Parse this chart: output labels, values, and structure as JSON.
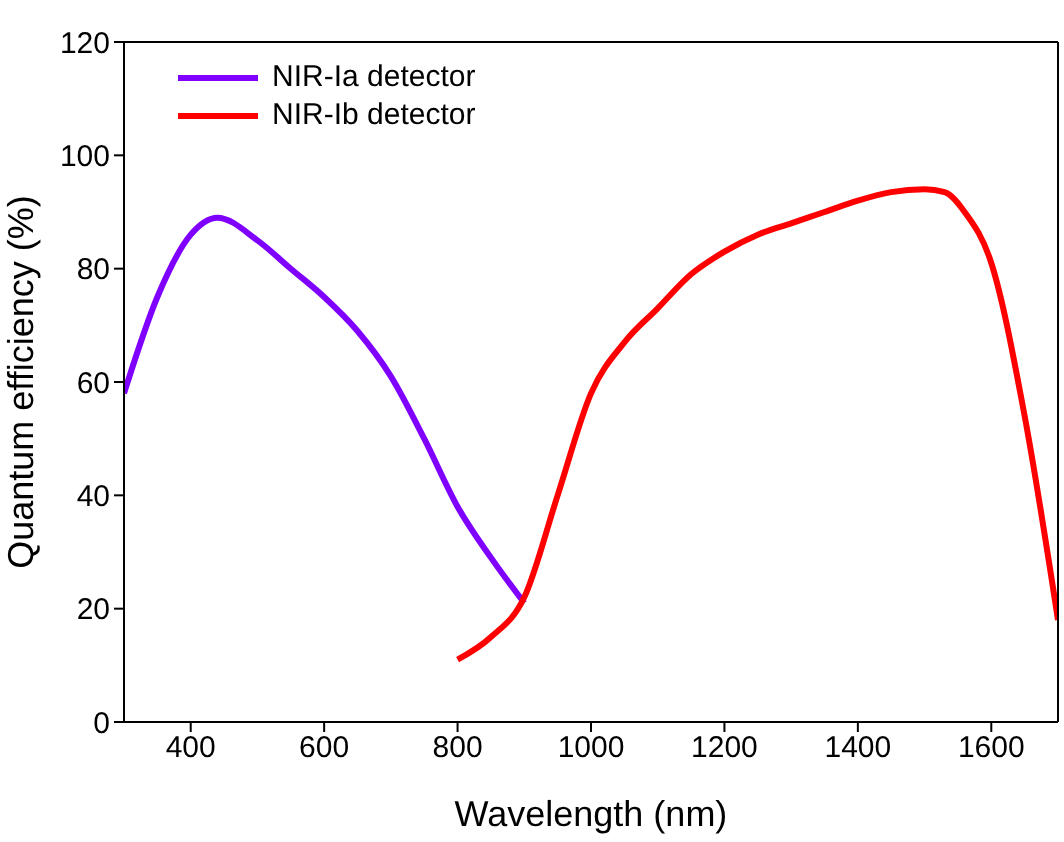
{
  "chart_data": {
    "type": "line",
    "xlabel": "Wavelength (nm)",
    "ylabel": "Quantum efficiency (%)",
    "xlim": [
      300,
      1700
    ],
    "xticks": [
      400,
      600,
      800,
      1000,
      1200,
      1400,
      1600
    ],
    "ylim": [
      0,
      120
    ],
    "yticks": [
      0,
      20,
      40,
      60,
      80,
      100,
      120
    ],
    "grid": false,
    "legend": "top left",
    "marker": "none",
    "line_style": "solid",
    "series": [
      {
        "name": "NIR-Ia detector",
        "color": "#7f00ff",
        "x": [
          300,
          350,
          400,
          440,
          500,
          550,
          600,
          650,
          700,
          750,
          800,
          850,
          900
        ],
        "values": [
          58,
          75,
          86,
          89,
          85,
          80,
          75,
          69,
          61,
          50,
          38,
          29,
          21
        ]
      },
      {
        "name": "NIR-Ib detector",
        "color": "#ff0000",
        "x": [
          800,
          850,
          900,
          950,
          1000,
          1050,
          1100,
          1150,
          1200,
          1250,
          1300,
          1350,
          1400,
          1450,
          1500,
          1530,
          1560,
          1600,
          1650,
          1700
        ],
        "values": [
          11,
          15,
          22,
          40,
          58,
          67,
          73,
          79,
          83,
          86,
          88,
          90,
          92,
          93.5,
          94,
          93.5,
          90,
          81,
          54,
          18
        ]
      }
    ]
  }
}
